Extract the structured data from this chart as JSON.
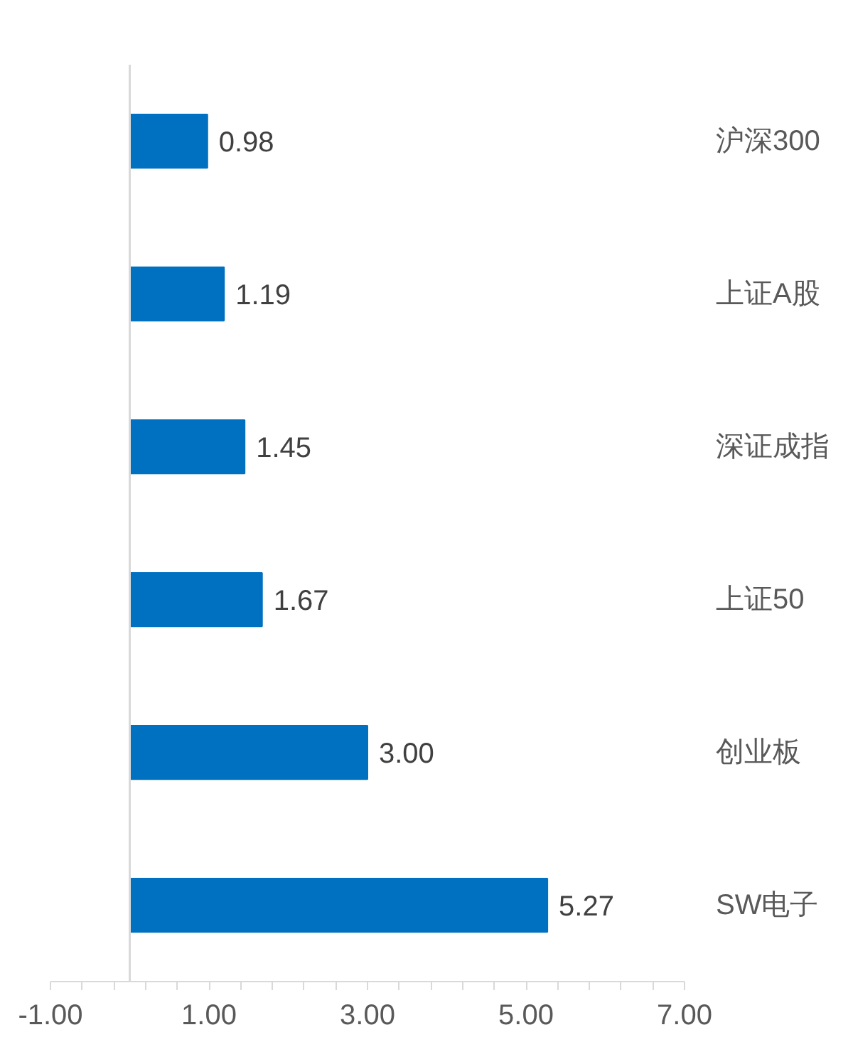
{
  "chart_data": {
    "type": "bar",
    "orientation": "horizontal",
    "categories": [
      "沪深300",
      "上证A股",
      "深证成指",
      "上证50",
      "创业板",
      "SW电子"
    ],
    "values": [
      0.98,
      1.19,
      1.45,
      1.67,
      3.0,
      5.27
    ],
    "color": "#0070c0",
    "data_labels": true,
    "value_labels": [
      "0.98",
      "1.19",
      "1.45",
      "1.67",
      "3.00",
      "5.27"
    ],
    "xlim": [
      -1,
      7
    ],
    "xticks": [
      {
        "value": -1,
        "label": "-1.00"
      },
      {
        "value": -0.6,
        "label": null
      },
      {
        "value": -0.2,
        "label": null
      },
      {
        "value": 0.2,
        "label": null
      },
      {
        "value": 0.6,
        "label": null
      },
      {
        "value": 1,
        "label": "1.00"
      },
      {
        "value": 1.4,
        "label": null
      },
      {
        "value": 1.8,
        "label": null
      },
      {
        "value": 2.2,
        "label": null
      },
      {
        "value": 2.6,
        "label": null
      },
      {
        "value": 3,
        "label": "3.00"
      },
      {
        "value": 3.4,
        "label": null
      },
      {
        "value": 3.8,
        "label": null
      },
      {
        "value": 4.2,
        "label": null
      },
      {
        "value": 4.6,
        "label": null
      },
      {
        "value": 5,
        "label": "5.00"
      },
      {
        "value": 5.4,
        "label": null
      },
      {
        "value": 5.8,
        "label": null
      },
      {
        "value": 6.2,
        "label": null
      },
      {
        "value": 6.6,
        "label": null
      },
      {
        "value": 7,
        "label": "7.00"
      }
    ],
    "grid": false
  }
}
